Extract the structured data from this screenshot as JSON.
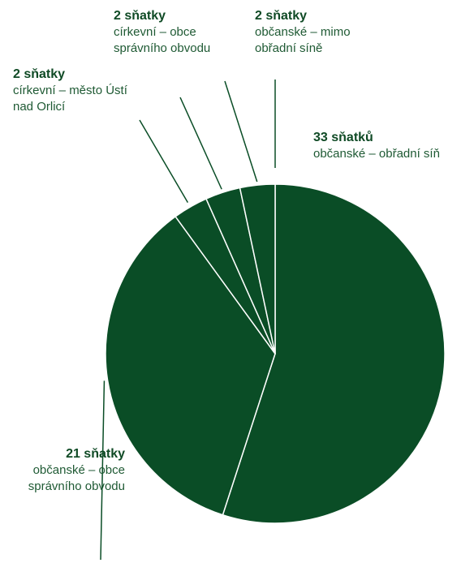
{
  "chart_data": {
    "type": "pie",
    "colors": {
      "slice": "#0a4d26",
      "separator": "#ffffff",
      "leader": "#0a4d26"
    },
    "slices": [
      {
        "value": 33,
        "value_label": "33 sňatků",
        "desc": "občanské – obřadní síň"
      },
      {
        "value": 21,
        "value_label": "21 sňatky",
        "desc": "občanské – obce správního obvodu"
      },
      {
        "value": 2,
        "value_label": "2 sňatky",
        "desc": "církevní –  město Ústí nad Orlicí"
      },
      {
        "value": 2,
        "value_label": "2 sňatky",
        "desc": "církevní –  obce správního obvodu"
      },
      {
        "value": 2,
        "value_label": "2 sňatky",
        "desc": "občanské – mimo obřadní síně"
      }
    ]
  }
}
